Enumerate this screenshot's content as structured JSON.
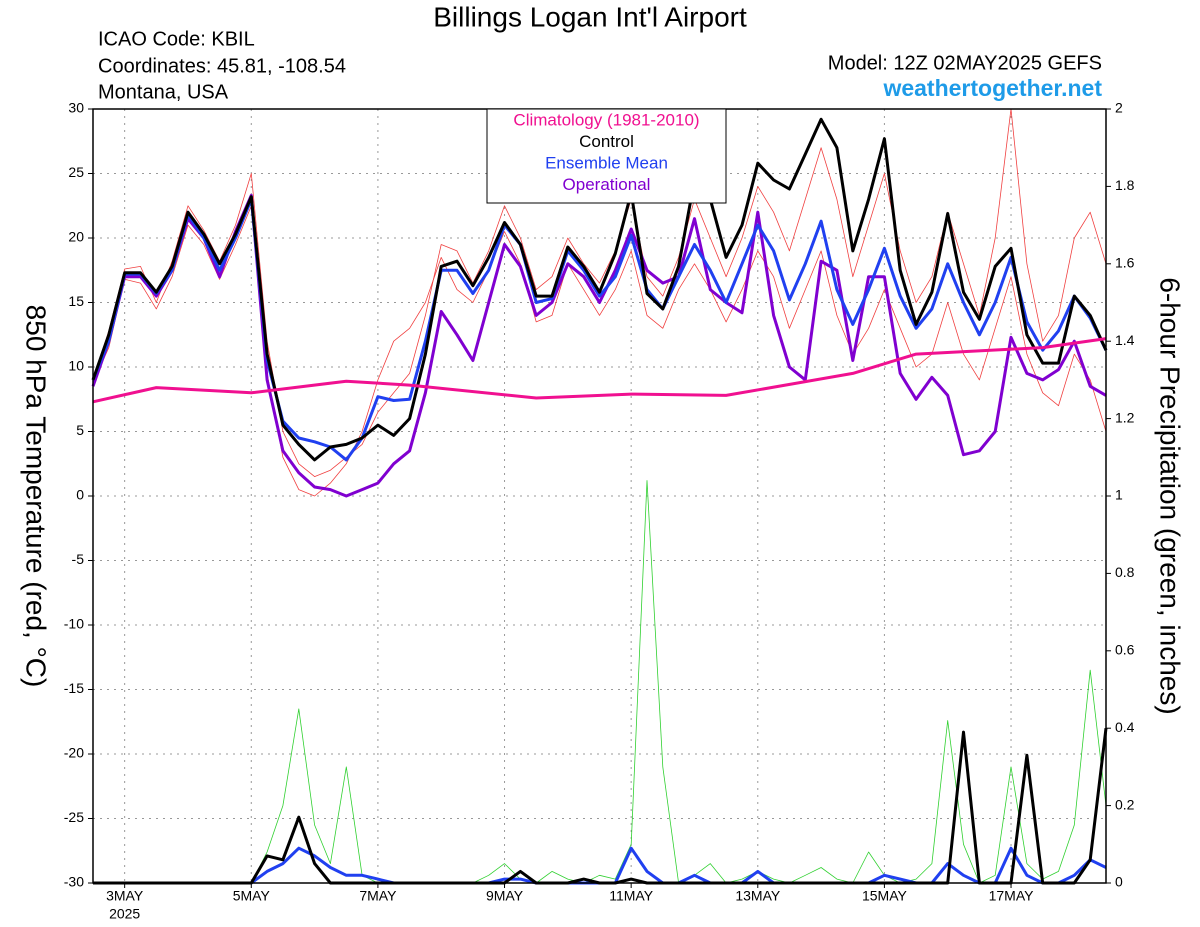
{
  "chart_data": {
    "type": "line",
    "title": "Billings Logan Int'l Airport",
    "annotations_left": [
      "ICAO Code: KBIL",
      "Coordinates: 45.81, -108.54",
      "Montana, USA"
    ],
    "model": "Model: 12Z 02MAY2025 GEFS",
    "site": "weathertogether.net",
    "ylabel": "850 hPa Temperature (red, °C)",
    "y2label": "6-hour Precipitation (green, inches)",
    "x_sublabel": "2025",
    "grid": true,
    "legend": "top-center",
    "xlim": [
      2.5,
      18.5
    ],
    "xticks": [
      {
        "value": 3,
        "label": "3MAY"
      },
      {
        "value": 5,
        "label": "5MAY"
      },
      {
        "value": 7,
        "label": "7MAY"
      },
      {
        "value": 9,
        "label": "9MAY"
      },
      {
        "value": 11,
        "label": "11MAY"
      },
      {
        "value": 13,
        "label": "13MAY"
      },
      {
        "value": 15,
        "label": "15MAY"
      },
      {
        "value": 17,
        "label": "17MAY"
      }
    ],
    "ylim": [
      -30,
      30
    ],
    "yticks": [
      -30,
      -25,
      -20,
      -15,
      -10,
      -5,
      0,
      5,
      10,
      15,
      20,
      25,
      30
    ],
    "y2lim": [
      0,
      2
    ],
    "y2ticks": [
      0,
      0.2,
      0.4,
      0.6,
      0.8,
      1,
      1.2,
      1.4,
      1.6,
      1.8,
      2
    ],
    "x": [
      2.5,
      2.75,
      3,
      3.25,
      3.5,
      3.75,
      4,
      4.25,
      4.5,
      4.75,
      5,
      5.25,
      5.5,
      5.75,
      6,
      6.25,
      6.5,
      6.75,
      7,
      7.25,
      7.5,
      7.75,
      8,
      8.25,
      8.5,
      8.75,
      9,
      9.25,
      9.5,
      9.75,
      10,
      10.25,
      10.5,
      10.75,
      11,
      11.25,
      11.5,
      11.75,
      12,
      12.25,
      12.5,
      12.75,
      13,
      13.25,
      13.5,
      13.75,
      14,
      14.25,
      14.5,
      14.75,
      15,
      15.25,
      15.5,
      15.75,
      16,
      16.25,
      16.5,
      16.75,
      17,
      17.25,
      17.5,
      17.75,
      18,
      18.25,
      18.5
    ],
    "series": [
      {
        "color": "#f04040",
        "width": 0.8,
        "values": [
          9,
          12.8,
          17.6,
          17.8,
          15,
          18.2,
          22.5,
          20.6,
          18.2,
          21,
          25,
          12,
          5,
          2.5,
          1.5,
          2,
          3,
          4,
          6.5,
          8,
          9.5,
          14,
          19.5,
          19,
          16.5,
          19,
          22.5,
          20,
          16,
          17,
          20,
          18,
          16.5,
          19,
          23,
          17,
          15.5,
          18.5,
          23,
          20,
          17,
          20,
          24,
          22,
          19,
          23,
          27,
          23,
          17,
          21,
          25,
          19,
          15,
          17,
          22,
          18,
          14,
          20,
          30,
          18,
          12,
          14,
          20,
          22,
          18
        ]
      },
      {
        "color": "#f04040",
        "width": 0.8,
        "values": [
          8.8,
          11.5,
          16.8,
          16.5,
          14.5,
          17,
          21,
          19.5,
          16.8,
          19.5,
          22.5,
          9.5,
          3,
          0.5,
          0,
          1,
          2.5,
          5,
          9,
          12,
          13,
          15,
          18.5,
          16,
          15,
          17.5,
          20.5,
          18,
          13.5,
          14,
          18,
          16,
          14,
          16,
          19,
          14,
          13,
          16,
          18,
          16,
          13.5,
          16,
          19,
          17,
          13,
          16,
          19,
          14,
          11,
          13,
          16,
          13,
          10,
          11,
          15,
          11,
          9,
          13,
          17,
          11,
          8,
          7,
          11,
          9,
          5
        ]
      },
      {
        "color": "#30d030",
        "width": 0.8,
        "axis": "y2",
        "values": [
          0,
          0,
          0,
          0,
          0,
          0,
          0,
          0,
          0,
          0,
          0,
          0.08,
          0.2,
          0.45,
          0.15,
          0.05,
          0.3,
          0.02,
          0,
          0,
          0,
          0,
          0,
          0,
          0,
          0.02,
          0.05,
          0.01,
          0,
          0.03,
          0.01,
          0,
          0.02,
          0.01,
          0.1,
          1.04,
          0.3,
          0,
          0.02,
          0.05,
          0,
          0.01,
          0.03,
          0.01,
          0,
          0.02,
          0.04,
          0.01,
          0,
          0.08,
          0.02,
          0,
          0.01,
          0.05,
          0.42,
          0.1,
          0,
          0.02,
          0.3,
          0.05,
          0.01,
          0.03,
          0.15,
          0.55,
          0.2
        ]
      },
      {
        "name": "Operational",
        "color": "#8000d0",
        "width": 3,
        "values": [
          8.5,
          12,
          17,
          17,
          15.5,
          17.5,
          21.5,
          20,
          17,
          20.5,
          23.3,
          9,
          3.5,
          1.8,
          0.7,
          0.5,
          0,
          0.5,
          1,
          2.5,
          3.5,
          8,
          14.3,
          12.5,
          10.5,
          15,
          19.5,
          17.8,
          14,
          15,
          18,
          17,
          15,
          17.5,
          20.7,
          17.5,
          16.5,
          17,
          21.5,
          16,
          15,
          14.2,
          22,
          14,
          10,
          9,
          18.2,
          17.5,
          10.5,
          17,
          17,
          9.5,
          7.5,
          9.2,
          7.8,
          3.2,
          3.5,
          5,
          12.3,
          9.5,
          9,
          9.8,
          12,
          8.5,
          7.8
        ]
      },
      {
        "color": "#2040f0",
        "width": 3,
        "axis": "y2",
        "values": [
          0,
          0,
          0,
          0,
          0,
          0,
          0,
          0,
          0,
          0,
          0,
          0.03,
          0.05,
          0.09,
          0.07,
          0.04,
          0.02,
          0.02,
          0.01,
          0,
          0,
          0,
          0,
          0,
          0,
          0,
          0.01,
          0.01,
          0,
          0,
          0,
          0,
          0,
          0,
          0.09,
          0.03,
          0,
          0,
          0.02,
          0,
          0,
          0,
          0.03,
          0,
          0,
          0,
          0,
          0,
          0,
          0,
          0.02,
          0.01,
          0,
          0,
          0.05,
          0.02,
          0,
          0,
          0.09,
          0.02,
          0,
          0,
          0.02,
          0.06,
          0.04
        ]
      },
      {
        "color": "#000000",
        "width": 3,
        "axis": "y2",
        "values": [
          0,
          0,
          0,
          0,
          0,
          0,
          0,
          0,
          0,
          0,
          0,
          0.07,
          0.06,
          0.17,
          0.05,
          0,
          0,
          0,
          0,
          0,
          0,
          0,
          0,
          0,
          0,
          0,
          0,
          0.03,
          0,
          0,
          0,
          0.01,
          0,
          0,
          0.01,
          0,
          0,
          0,
          0,
          0,
          0,
          0,
          0,
          0,
          0,
          0,
          0,
          0,
          0,
          0,
          0,
          0,
          0,
          0,
          0,
          0.39,
          0,
          0,
          0,
          0.33,
          0,
          0,
          0,
          0.06,
          0.4
        ]
      },
      {
        "name": "Ensemble Mean",
        "color": "#2040f0",
        "width": 3,
        "values": [
          9,
          12,
          17.2,
          17.2,
          15.7,
          17.5,
          21.8,
          20,
          17.5,
          20,
          23,
          10.5,
          5.8,
          4.5,
          4.2,
          3.8,
          2.8,
          4.5,
          7.7,
          7.4,
          7.5,
          12,
          17.5,
          17.5,
          15.7,
          17.5,
          21,
          19.5,
          15,
          15.3,
          19,
          17.5,
          15.5,
          17,
          20.2,
          16,
          14.5,
          17,
          19.5,
          17.5,
          15,
          18,
          21,
          19,
          15.2,
          18,
          21.3,
          16,
          13.3,
          16,
          19.2,
          15.5,
          13,
          14.5,
          18,
          15,
          12.5,
          15,
          18.5,
          13.5,
          11.3,
          12.8,
          15.5,
          13.8,
          11.3
        ]
      },
      {
        "name": "Control",
        "color": "#000000",
        "width": 3,
        "values": [
          9,
          12.5,
          17.3,
          17.3,
          15.8,
          17.8,
          22,
          20.3,
          18,
          20.3,
          23.2,
          11,
          5.5,
          4,
          2.8,
          3.8,
          4,
          4.5,
          5.5,
          4.7,
          6,
          11,
          17.8,
          18.2,
          16.3,
          18.5,
          21.2,
          19.5,
          15.5,
          15.5,
          19.3,
          17.8,
          15.8,
          18.8,
          23.5,
          15.7,
          14.5,
          17.8,
          24.5,
          23,
          18.5,
          21,
          25.8,
          24.5,
          23.8,
          26.5,
          29.2,
          27,
          19,
          23,
          27.7,
          17.5,
          13.3,
          15.8,
          21.9,
          15.8,
          13.7,
          17.8,
          19.2,
          12.5,
          10.3,
          10.3,
          15.5,
          14,
          11.3
        ]
      },
      {
        "name": "Climatology (1981-2010)",
        "color": "#f01090",
        "width": 3,
        "x": [
          2.5,
          3.5,
          5,
          6.5,
          7.5,
          9.5,
          11,
          12.5,
          14.5,
          15.5,
          17.5,
          18.5
        ],
        "values": [
          7.3,
          8.4,
          8,
          8.9,
          8.6,
          7.6,
          7.9,
          7.8,
          9.5,
          11,
          11.5,
          12.2
        ]
      }
    ]
  }
}
